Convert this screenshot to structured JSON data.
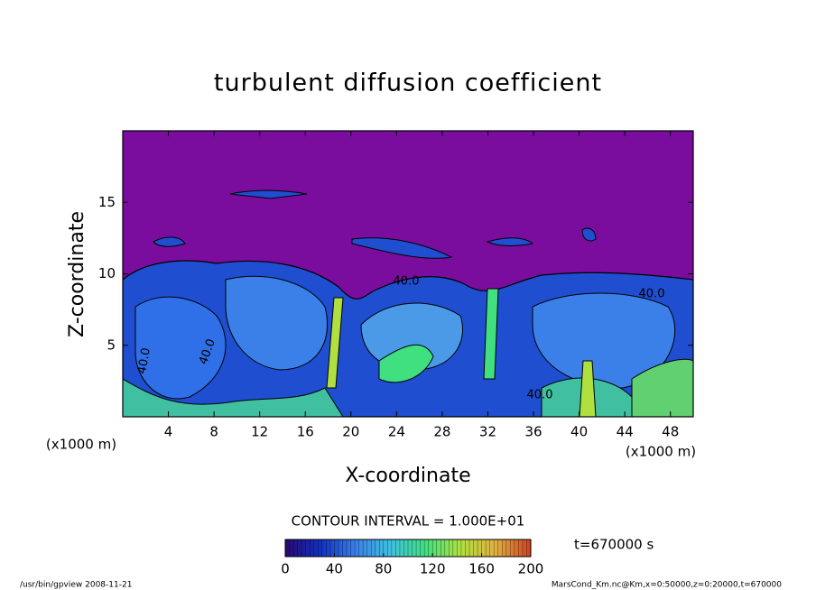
{
  "chart_data": {
    "type": "contour",
    "title": "turbulent diffusion coefficient",
    "xlabel": "X-coordinate",
    "ylabel": "Z-coordinate",
    "x_unit_left": "(x1000 m)",
    "x_unit_right": "(x1000 m)",
    "xlim": [
      0,
      50
    ],
    "ylim": [
      0,
      20
    ],
    "xticks": [
      4,
      8,
      12,
      16,
      20,
      24,
      28,
      32,
      36,
      40,
      44,
      48
    ],
    "yticks": [
      5,
      10,
      15
    ],
    "annotations": [
      "40.0",
      "40.0",
      "40.0",
      "40.0",
      "40.0"
    ],
    "background_color": "#7a0d9e",
    "colorbar": {
      "label": "CONTOUR INTERVAL = 1.000E+01",
      "lim": [
        0,
        200
      ],
      "ticks": [
        0,
        40,
        80,
        120,
        160,
        200
      ],
      "colors": [
        "#2a0a6e",
        "#1030c0",
        "#3a80e8",
        "#40c0e0",
        "#40e080",
        "#b0e040",
        "#e0b040",
        "#d04020"
      ]
    },
    "time_label": "t=670000 s",
    "footer_left": "/usr/bin/gpview  2008-11-21",
    "footer_right": "MarsCond_Km.nc@Km,x=0:50000,z=0:20000,t=670000"
  }
}
